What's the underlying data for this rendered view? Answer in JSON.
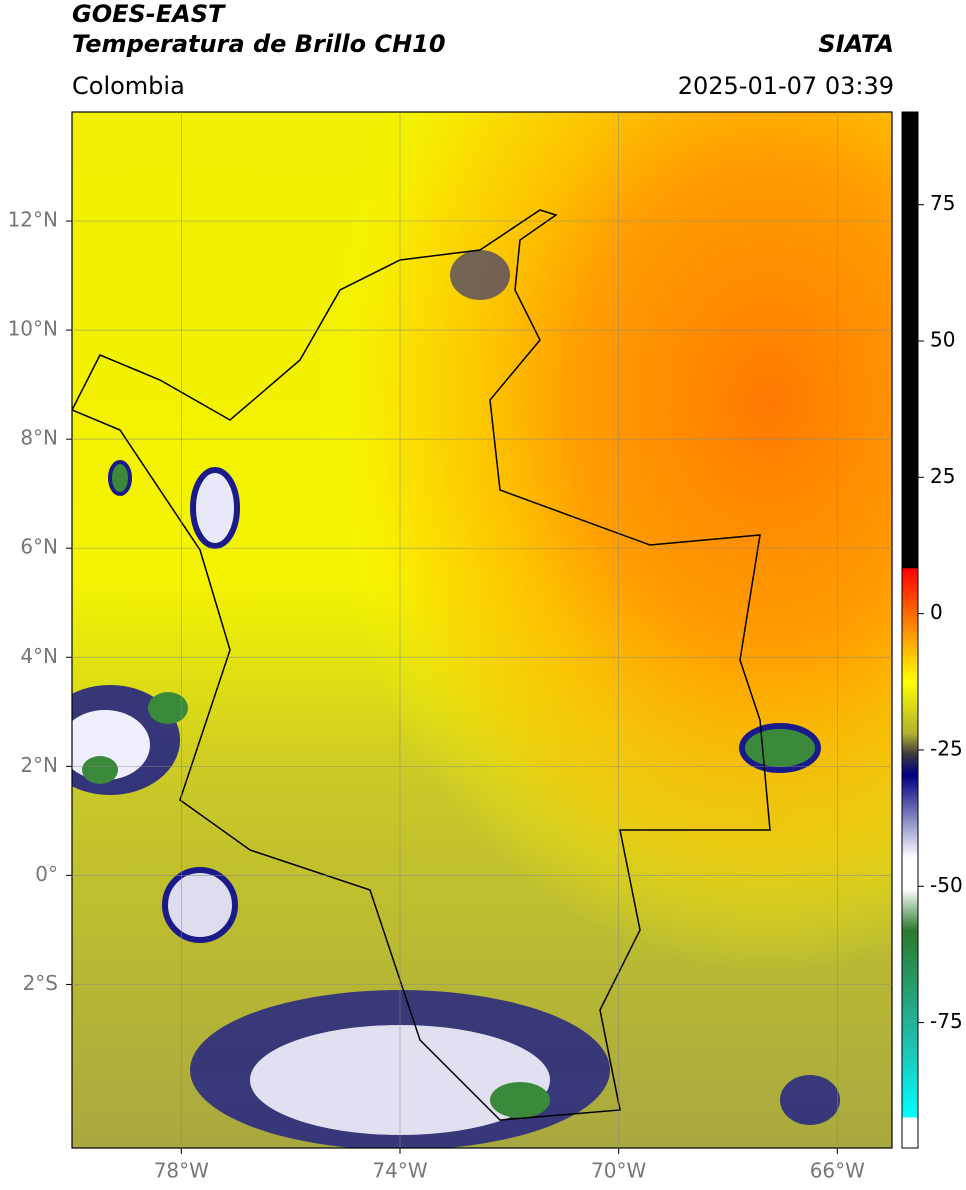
{
  "header": {
    "satellite": "GOES-EAST",
    "product": "Temperatura de Brillo CH10",
    "agency": "SIATA",
    "region": "Colombia",
    "timestamp": "2025-01-07 03:39"
  },
  "map": {
    "xlim": [
      -80,
      -65
    ],
    "ylim": [
      -5,
      14
    ],
    "xticks": [
      {
        "value": -78,
        "label": "78°W"
      },
      {
        "value": -74,
        "label": "74°W"
      },
      {
        "value": -70,
        "label": "70°W"
      },
      {
        "value": -66,
        "label": "66°W"
      }
    ],
    "yticks": [
      {
        "value": 12,
        "label": "12°N"
      },
      {
        "value": 10,
        "label": "10°N"
      },
      {
        "value": 8,
        "label": "8°N"
      },
      {
        "value": 6,
        "label": "6°N"
      },
      {
        "value": 4,
        "label": "4°N"
      },
      {
        "value": 2,
        "label": "2°N"
      },
      {
        "value": 0,
        "label": "0°"
      },
      {
        "value": -2,
        "label": "2°S"
      }
    ]
  },
  "colorbar": {
    "lim": [
      -98,
      92
    ],
    "ticks": [
      75,
      50,
      25,
      0,
      -25,
      -50,
      -75
    ]
  }
}
